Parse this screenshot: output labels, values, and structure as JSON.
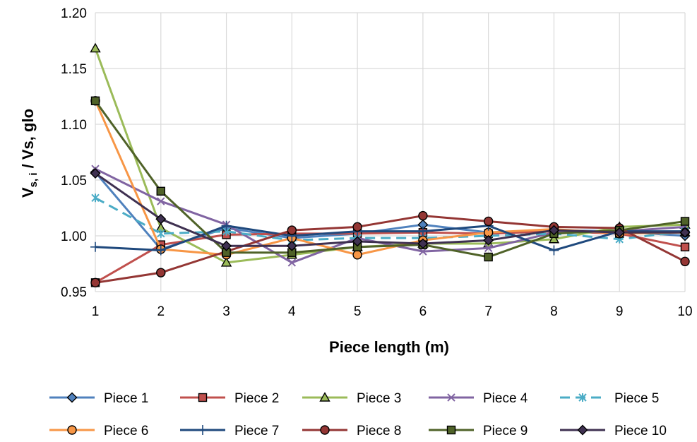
{
  "chart_data": {
    "type": "line",
    "title": "",
    "xlabel": "Piece length (m)",
    "ylabel_main": "V",
    "ylabel_sub1": "s, i",
    "ylabel_mid": " / Vs, glo",
    "x": [
      1,
      2,
      3,
      4,
      5,
      6,
      7,
      8,
      9,
      10
    ],
    "x_tick_labels": [
      "1",
      "2",
      "3",
      "4",
      "5",
      "6",
      "7",
      "8",
      "9",
      "10"
    ],
    "y_tick_labels": [
      "0.95",
      "1.00",
      "1.05",
      "1.10",
      "1.15",
      "1.20"
    ],
    "ylim": [
      0.95,
      1.2
    ],
    "grid": true,
    "legend_position": "bottom",
    "series": [
      {
        "name": "Piece 1",
        "color": "#4F81BD",
        "marker": "diamond",
        "dash": "solid",
        "values": [
          1.057,
          0.988,
          1.007,
          0.998,
          1.002,
          1.01,
          1.003,
          1.005,
          1.004,
          1.0
        ]
      },
      {
        "name": "Piece 2",
        "color": "#C0504D",
        "marker": "square",
        "dash": "solid",
        "values": [
          0.958,
          0.992,
          1.001,
          1.002,
          1.002,
          1.003,
          1.002,
          1.004,
          1.002,
          0.99
        ]
      },
      {
        "name": "Piece 3",
        "color": "#9BBB59",
        "marker": "triangle",
        "dash": "solid",
        "values": [
          1.168,
          1.007,
          0.976,
          0.983,
          0.99,
          0.993,
          0.993,
          0.997,
          1.008,
          1.01
        ]
      },
      {
        "name": "Piece 4",
        "color": "#8064A2",
        "marker": "x",
        "dash": "solid",
        "values": [
          1.06,
          1.031,
          1.01,
          0.976,
          0.998,
          0.986,
          0.989,
          1.003,
          1.004,
          1.008
        ]
      },
      {
        "name": "Piece 5",
        "color": "#4BACC6",
        "marker": "star",
        "dash": "dash",
        "values": [
          1.034,
          1.002,
          1.004,
          0.996,
          0.998,
          0.998,
          1.0,
          1.002,
          0.997,
          1.004
        ]
      },
      {
        "name": "Piece 6",
        "color": "#F79646",
        "marker": "circle",
        "dash": "solid",
        "values": [
          1.121,
          0.988,
          0.983,
          0.998,
          0.983,
          0.996,
          1.003,
          1.006,
          1.002,
          1.003
        ]
      },
      {
        "name": "Piece 7",
        "color": "#1F497D",
        "marker": "plus",
        "dash": "solid",
        "values": [
          0.99,
          0.987,
          1.009,
          1.0,
          1.004,
          1.004,
          1.009,
          0.987,
          1.004,
          1.004
        ]
      },
      {
        "name": "Piece 8",
        "color": "#943634",
        "marker": "circle",
        "dash": "solid",
        "values": [
          0.958,
          0.967,
          0.986,
          1.005,
          1.008,
          1.018,
          1.013,
          1.008,
          1.007,
          0.977
        ]
      },
      {
        "name": "Piece 9",
        "color": "#4F6228",
        "marker": "square",
        "dash": "solid",
        "values": [
          1.121,
          1.04,
          0.985,
          0.985,
          0.99,
          0.992,
          0.981,
          1.002,
          1.005,
          1.013
        ]
      },
      {
        "name": "Piece 10",
        "color": "#3F3151",
        "marker": "diamond",
        "dash": "solid",
        "values": [
          1.056,
          1.015,
          0.991,
          0.991,
          0.995,
          0.993,
          0.996,
          1.005,
          1.003,
          1.003
        ]
      }
    ]
  }
}
